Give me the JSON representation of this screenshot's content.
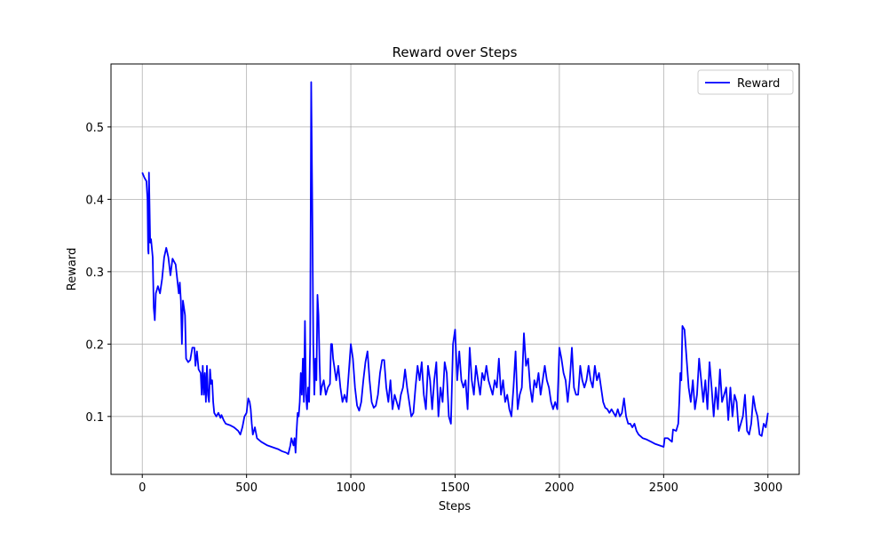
{
  "chart_data": {
    "type": "line",
    "title": "Reward over Steps",
    "xlabel": "Steps",
    "ylabel": "Reward",
    "x": [
      0,
      10,
      20,
      25,
      28,
      30,
      32,
      38,
      42,
      50,
      55,
      60,
      65,
      75,
      85,
      95,
      105,
      115,
      125,
      135,
      145,
      160,
      175,
      180,
      185,
      190,
      195,
      205,
      210,
      220,
      230,
      240,
      250,
      255,
      262,
      270,
      280,
      285,
      290,
      295,
      300,
      305,
      310,
      315,
      320,
      325,
      330,
      335,
      340,
      345,
      355,
      365,
      375,
      380,
      390,
      400,
      420,
      440,
      460,
      470,
      480,
      490,
      500,
      508,
      515,
      520,
      525,
      530,
      540,
      550,
      570,
      600,
      630,
      650,
      670,
      690,
      700,
      710,
      715,
      720,
      725,
      730,
      735,
      740,
      745,
      750,
      755,
      760,
      765,
      770,
      775,
      780,
      785,
      790,
      795,
      800,
      805,
      810,
      815,
      820,
      825,
      830,
      835,
      840,
      845,
      850,
      855,
      860,
      870,
      880,
      890,
      900,
      905,
      910,
      915,
      920,
      930,
      940,
      950,
      960,
      970,
      980,
      990,
      1000,
      1010,
      1020,
      1030,
      1040,
      1050,
      1060,
      1070,
      1080,
      1090,
      1100,
      1110,
      1120,
      1130,
      1140,
      1150,
      1160,
      1170,
      1180,
      1190,
      1200,
      1210,
      1220,
      1230,
      1240,
      1250,
      1260,
      1270,
      1280,
      1290,
      1300,
      1310,
      1320,
      1330,
      1340,
      1350,
      1360,
      1370,
      1380,
      1390,
      1400,
      1410,
      1420,
      1430,
      1440,
      1450,
      1460,
      1470,
      1480,
      1490,
      1500,
      1510,
      1520,
      1530,
      1540,
      1550,
      1560,
      1570,
      1580,
      1590,
      1600,
      1610,
      1620,
      1630,
      1640,
      1650,
      1660,
      1670,
      1680,
      1690,
      1700,
      1710,
      1720,
      1730,
      1740,
      1750,
      1760,
      1770,
      1780,
      1790,
      1800,
      1810,
      1820,
      1830,
      1840,
      1850,
      1860,
      1870,
      1880,
      1890,
      1900,
      1910,
      1920,
      1930,
      1940,
      1950,
      1960,
      1970,
      1980,
      1990,
      2000,
      2010,
      2020,
      2030,
      2040,
      2050,
      2060,
      2070,
      2080,
      2090,
      2100,
      2110,
      2120,
      2130,
      2140,
      2150,
      2160,
      2170,
      2180,
      2190,
      2200,
      2210,
      2220,
      2230,
      2240,
      2250,
      2260,
      2270,
      2280,
      2290,
      2300,
      2310,
      2320,
      2330,
      2340,
      2350,
      2360,
      2370,
      2380,
      2400,
      2420,
      2440,
      2460,
      2480,
      2500,
      2505,
      2520,
      2540,
      2545,
      2560,
      2570,
      2575,
      2580,
      2585,
      2590,
      2600,
      2610,
      2620,
      2630,
      2640,
      2650,
      2660,
      2670,
      2680,
      2690,
      2700,
      2710,
      2720,
      2730,
      2740,
      2750,
      2760,
      2770,
      2780,
      2790,
      2800,
      2810,
      2820,
      2830,
      2840,
      2850,
      2860,
      2870,
      2880,
      2890,
      2900,
      2910,
      2920,
      2930,
      2940,
      2950,
      2960,
      2970,
      2980,
      2990,
      3000
    ],
    "series": [
      {
        "name": "Reward",
        "color": "#0000ff",
        "values": [
          0.437,
          0.43,
          0.425,
          0.4,
          0.33,
          0.325,
          0.437,
          0.34,
          0.345,
          0.32,
          0.25,
          0.233,
          0.27,
          0.28,
          0.27,
          0.29,
          0.32,
          0.333,
          0.32,
          0.295,
          0.318,
          0.31,
          0.27,
          0.285,
          0.26,
          0.2,
          0.26,
          0.24,
          0.18,
          0.175,
          0.178,
          0.195,
          0.195,
          0.17,
          0.19,
          0.165,
          0.16,
          0.13,
          0.17,
          0.13,
          0.16,
          0.12,
          0.17,
          0.13,
          0.12,
          0.165,
          0.145,
          0.15,
          0.12,
          0.105,
          0.1,
          0.105,
          0.098,
          0.102,
          0.095,
          0.09,
          0.088,
          0.085,
          0.08,
          0.075,
          0.085,
          0.1,
          0.105,
          0.125,
          0.12,
          0.11,
          0.09,
          0.075,
          0.085,
          0.07,
          0.065,
          0.06,
          0.057,
          0.055,
          0.052,
          0.05,
          0.048,
          0.06,
          0.07,
          0.065,
          0.06,
          0.07,
          0.05,
          0.08,
          0.105,
          0.1,
          0.12,
          0.16,
          0.13,
          0.18,
          0.12,
          0.232,
          0.13,
          0.11,
          0.14,
          0.12,
          0.2,
          0.562,
          0.4,
          0.2,
          0.13,
          0.18,
          0.15,
          0.268,
          0.24,
          0.175,
          0.13,
          0.14,
          0.15,
          0.13,
          0.14,
          0.145,
          0.2,
          0.2,
          0.18,
          0.17,
          0.15,
          0.17,
          0.14,
          0.12,
          0.13,
          0.12,
          0.16,
          0.2,
          0.18,
          0.14,
          0.115,
          0.108,
          0.12,
          0.15,
          0.175,
          0.19,
          0.15,
          0.12,
          0.112,
          0.115,
          0.13,
          0.16,
          0.178,
          0.178,
          0.14,
          0.12,
          0.15,
          0.11,
          0.13,
          0.12,
          0.11,
          0.13,
          0.14,
          0.165,
          0.14,
          0.12,
          0.1,
          0.105,
          0.14,
          0.17,
          0.15,
          0.175,
          0.13,
          0.11,
          0.17,
          0.15,
          0.11,
          0.15,
          0.175,
          0.1,
          0.14,
          0.12,
          0.175,
          0.16,
          0.1,
          0.09,
          0.2,
          0.22,
          0.15,
          0.19,
          0.15,
          0.14,
          0.15,
          0.11,
          0.195,
          0.15,
          0.13,
          0.17,
          0.15,
          0.13,
          0.16,
          0.15,
          0.17,
          0.15,
          0.14,
          0.13,
          0.15,
          0.14,
          0.18,
          0.13,
          0.15,
          0.12,
          0.13,
          0.11,
          0.1,
          0.14,
          0.19,
          0.11,
          0.13,
          0.14,
          0.215,
          0.17,
          0.18,
          0.14,
          0.12,
          0.15,
          0.14,
          0.16,
          0.13,
          0.15,
          0.17,
          0.15,
          0.14,
          0.12,
          0.11,
          0.12,
          0.11,
          0.195,
          0.18,
          0.16,
          0.15,
          0.12,
          0.15,
          0.195,
          0.14,
          0.13,
          0.13,
          0.17,
          0.15,
          0.14,
          0.15,
          0.17,
          0.15,
          0.14,
          0.17,
          0.15,
          0.16,
          0.14,
          0.12,
          0.112,
          0.11,
          0.105,
          0.11,
          0.105,
          0.1,
          0.11,
          0.1,
          0.105,
          0.125,
          0.1,
          0.09,
          0.09,
          0.085,
          0.09,
          0.08,
          0.075,
          0.07,
          0.068,
          0.065,
          0.062,
          0.06,
          0.058,
          0.07,
          0.07,
          0.065,
          0.082,
          0.08,
          0.09,
          0.12,
          0.16,
          0.15,
          0.225,
          0.22,
          0.18,
          0.14,
          0.12,
          0.15,
          0.11,
          0.13,
          0.18,
          0.15,
          0.12,
          0.15,
          0.11,
          0.175,
          0.14,
          0.1,
          0.14,
          0.11,
          0.165,
          0.12,
          0.13,
          0.14,
          0.095,
          0.14,
          0.1,
          0.13,
          0.12,
          0.08,
          0.09,
          0.1,
          0.13,
          0.08,
          0.075,
          0.09,
          0.128,
          0.11,
          0.1,
          0.075,
          0.073,
          0.09,
          0.085,
          0.105
        ]
      }
    ],
    "xlim": [
      -150,
      3150
    ],
    "xticks": [
      0,
      500,
      1000,
      1500,
      2000,
      2500,
      3000
    ],
    "ylim": [
      0.02,
      0.587
    ],
    "yticks": [
      0.1,
      0.2,
      0.3,
      0.4,
      0.5
    ],
    "grid": true,
    "legend": "upper right"
  }
}
